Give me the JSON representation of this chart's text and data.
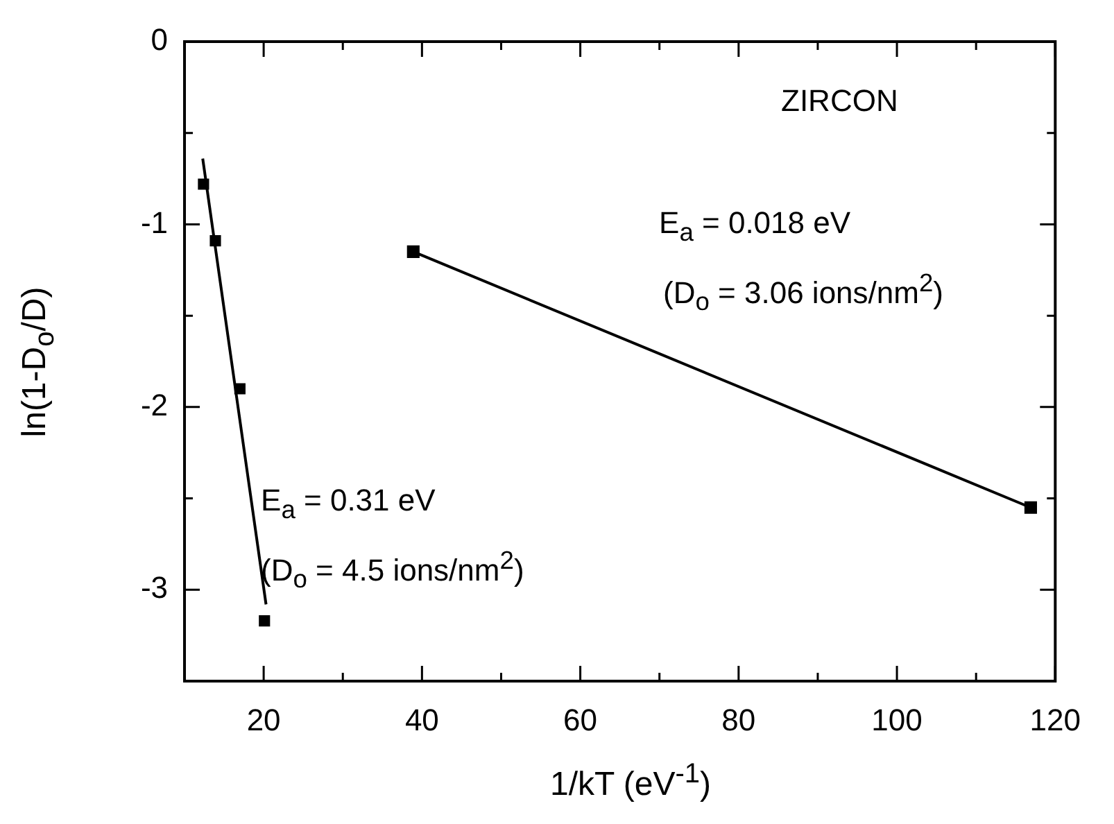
{
  "chart_data": {
    "type": "scatter",
    "xlabel": "1/kT (eV$^{-1}$)",
    "ylabel": "ln(1-D$_{o}$/D)",
    "xlim": [
      10,
      120
    ],
    "xticks": [
      {
        "value": 10,
        "label": null
      },
      20,
      {
        "value": 30,
        "label": null
      },
      40,
      {
        "value": 50,
        "label": null
      },
      60,
      {
        "value": 70,
        "label": null
      },
      80,
      {
        "value": 90,
        "label": null
      },
      100,
      {
        "value": 110,
        "label": null
      },
      120
    ],
    "ylim": [
      -3.5,
      0
    ],
    "yticks": [
      0,
      {
        "value": -0.5,
        "label": null
      },
      -1,
      {
        "value": -1.5,
        "label": null
      },
      -2,
      {
        "value": -2.5,
        "label": null
      },
      -3,
      {
        "value": -3.5,
        "label": null
      }
    ],
    "series": [
      {
        "type": "scatter",
        "color": "#000000",
        "marker": "square",
        "x": [
          12.4,
          13.9,
          17.0,
          20.1
        ],
        "values": [
          -0.78,
          -1.09,
          -1.9,
          -3.17
        ]
      },
      {
        "type": "line",
        "color": "#000000",
        "marker": "none",
        "x": [
          12.3,
          20.3
        ],
        "values": [
          -0.64,
          -3.08
        ]
      },
      {
        "type": "line",
        "color": "#000000",
        "marker": "square",
        "x": [
          38.9,
          116.9
        ],
        "values": [
          -1.15,
          -2.55
        ]
      }
    ],
    "annotations": [
      "ZIRCON",
      "E$_{a}$ = 0.018 eV",
      "(D$_{o}$ = 3.06 ions/nm$^{2}$)",
      "E$_{a}$ = 0.31 eV",
      "(D$_{o}$ = 4.5 ions/nm$^{2}$)"
    ],
    "grid": false,
    "legend": false
  }
}
